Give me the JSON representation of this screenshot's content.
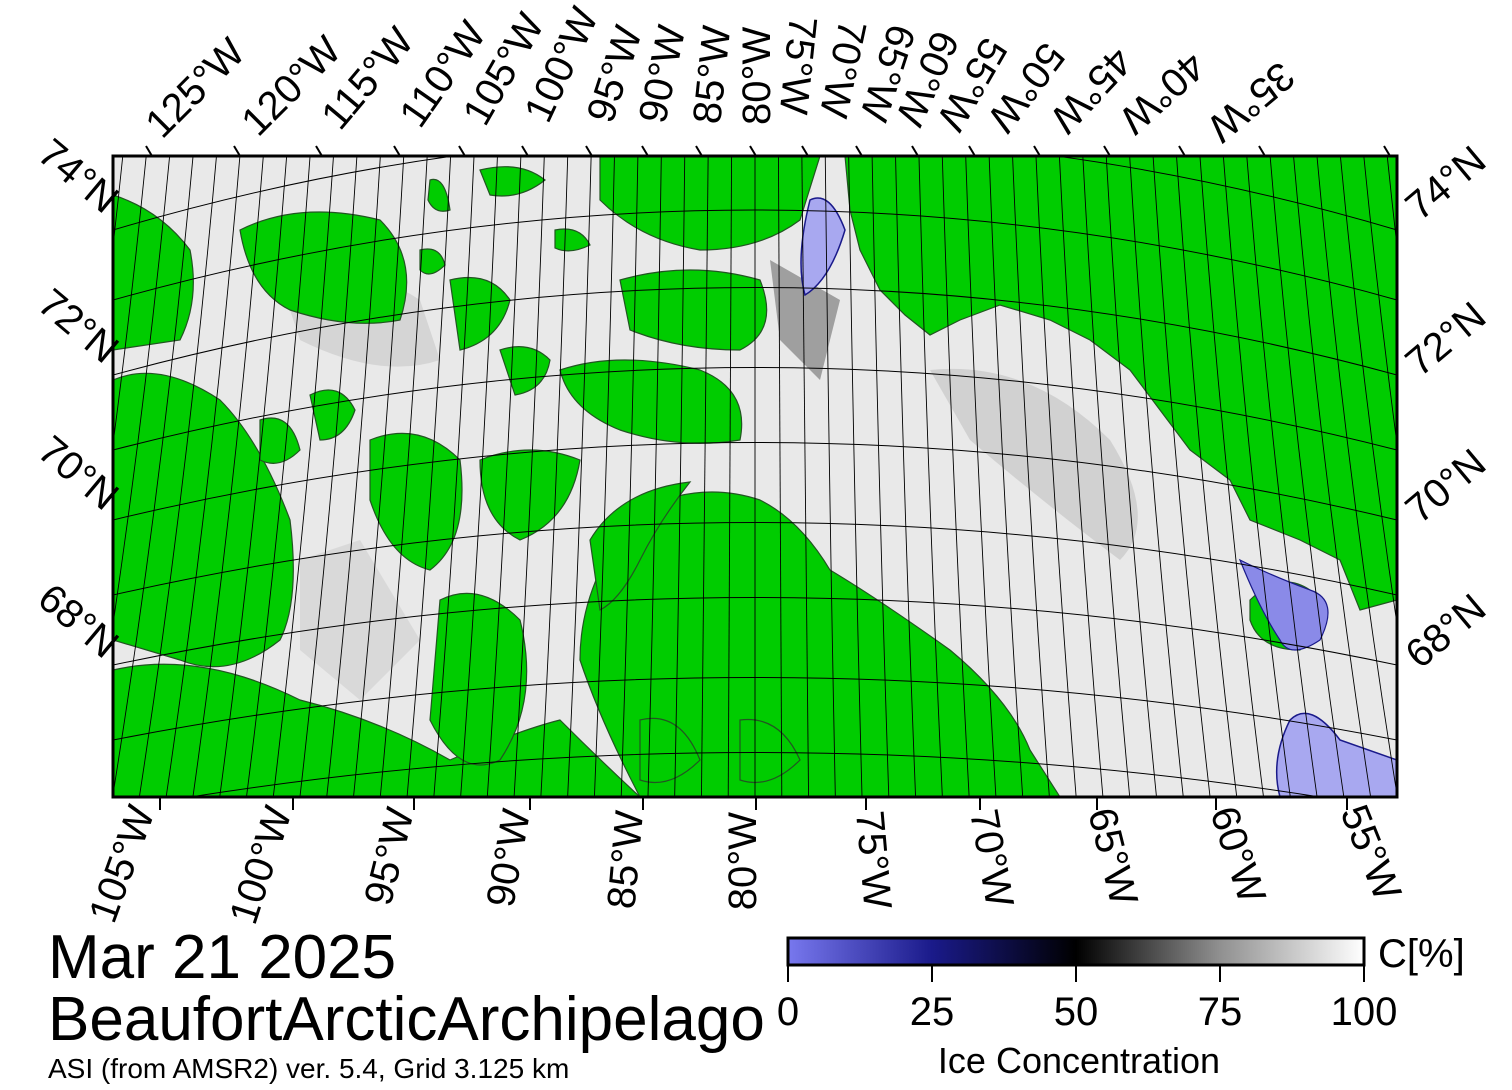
{
  "map": {
    "date": "Mar 21 2025",
    "region": "BeaufortArcticArchipelago",
    "source": "ASI (from AMSR2) ver. 5.4,  Grid 3.125 km",
    "colors": {
      "land": "#00cc00",
      "land_outline": "#225522",
      "ice_high": "#ffffff",
      "ice_mid": "#000000",
      "ice_low": "#6a6ae6",
      "open_water": "#a8a8f0",
      "graticule": "#000000"
    },
    "top_longitude_labels": [
      "125°W",
      "120°W",
      "115°W",
      "110°W",
      "105°W",
      "100°W",
      "95°W",
      "90°W",
      "85°W",
      "80°W",
      "75°W",
      "70°W",
      "65°W",
      "60°W",
      "55°W",
      "50°W",
      "45°W",
      "40°W",
      "35°W"
    ],
    "bottom_longitude_labels": [
      "105°W",
      "100°W",
      "95°W",
      "90°W",
      "85°W",
      "80°W",
      "75°W",
      "70°W",
      "65°W",
      "60°W",
      "55°W"
    ],
    "left_latitude_labels": [
      "74°N",
      "72°N",
      "70°N",
      "68°N"
    ],
    "right_latitude_labels": [
      "74°N",
      "72°N",
      "70°N",
      "68°N"
    ]
  },
  "colorbar": {
    "title": "Ice Concentration",
    "unit": "C[%]",
    "ticks": [
      "0",
      "25",
      "50",
      "75",
      "100"
    ],
    "range": [
      0,
      100
    ],
    "gradient": [
      {
        "value": 0,
        "color": "#7878ee"
      },
      {
        "value": 25,
        "color": "#1a1a8a"
      },
      {
        "value": 50,
        "color": "#000000"
      },
      {
        "value": 75,
        "color": "#909090"
      },
      {
        "value": 100,
        "color": "#ffffff"
      }
    ]
  }
}
